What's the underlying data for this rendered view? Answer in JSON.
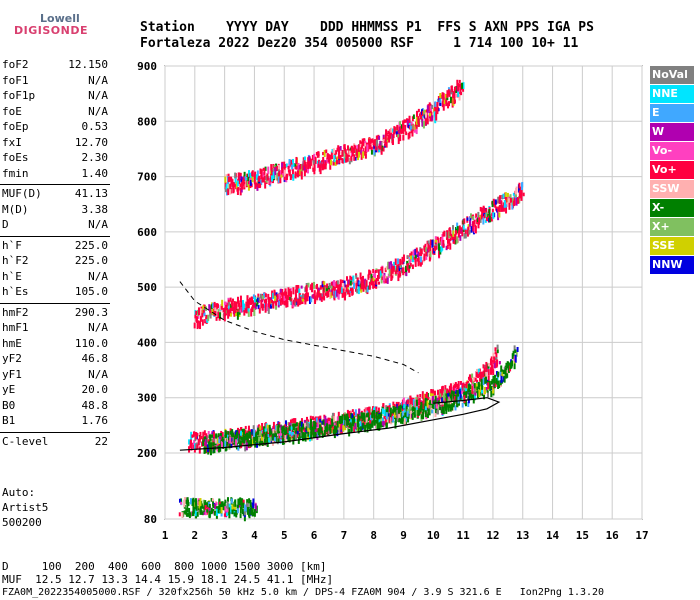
{
  "logo": {
    "top": "Lowell",
    "main": "DIGISONDE"
  },
  "header": {
    "line1": "Station    YYYY DAY    DDD HHMMSS P1  FFS S AXN PPS IGA PS",
    "line2": "Fortaleza 2022 Dez20 354 005000 RSF     1 714 100 10+ 11"
  },
  "params": [
    {
      "label": "foF2",
      "value": "12.150"
    },
    {
      "label": "foF1",
      "value": "N/A"
    },
    {
      "label": "foF1p",
      "value": "N/A"
    },
    {
      "label": "foE",
      "value": "N/A"
    },
    {
      "label": "foEp",
      "value": "0.53"
    },
    {
      "label": "fxI",
      "value": "12.70"
    },
    {
      "label": "foEs",
      "value": "2.30"
    },
    {
      "label": "fmin",
      "value": "1.40",
      "sep_after": true
    },
    {
      "label": "MUF(D)",
      "value": "41.13"
    },
    {
      "label": "M(D)",
      "value": "3.38"
    },
    {
      "label": "D",
      "value": "N/A",
      "sep_after": true
    },
    {
      "label": "h`F",
      "value": "225.0"
    },
    {
      "label": "h`F2",
      "value": "225.0"
    },
    {
      "label": "h`E",
      "value": "N/A"
    },
    {
      "label": "h`Es",
      "value": "105.0",
      "sep_after": true
    },
    {
      "label": "hmF2",
      "value": "290.3"
    },
    {
      "label": "hmF1",
      "value": "N/A"
    },
    {
      "label": "hmE",
      "value": "110.0"
    },
    {
      "label": "yF2",
      "value": "46.8"
    },
    {
      "label": "yF1",
      "value": "N/A"
    },
    {
      "label": "yE",
      "value": "20.0"
    },
    {
      "label": "B0",
      "value": "48.8"
    },
    {
      "label": "B1",
      "value": "1.76",
      "sep_after": true
    },
    {
      "label": "C-level",
      "value": "22"
    }
  ],
  "auto": {
    "line1": "Auto:",
    "line2": "Artist5",
    "line3": "500200"
  },
  "legend": [
    {
      "label": "NoVal",
      "color": "#808080"
    },
    {
      "label": "NNE",
      "color": "#00e5ff"
    },
    {
      "label": "E",
      "color": "#40a8ff"
    },
    {
      "label": "W",
      "color": "#b000b0"
    },
    {
      "label": "Vo-",
      "color": "#ff40c0"
    },
    {
      "label": "Vo+",
      "color": "#ff0040"
    },
    {
      "label": "SSW",
      "color": "#ffb0b0"
    },
    {
      "label": "X-",
      "color": "#008000"
    },
    {
      "label": "X+",
      "color": "#80c060"
    },
    {
      "label": "SSE",
      "color": "#d0d000"
    },
    {
      "label": "NNW",
      "color": "#0000e0"
    }
  ],
  "footer": {
    "line1": "D     100  200  400  600  800 1000 1500 3000 [km]",
    "line2": "MUF  12.5 12.7 13.3 14.4 15.9 18.1 24.5 41.1 [MHz]",
    "line3": "FZA0M_2022354005000.RSF / 320fx256h 50 kHz 5.0 km / DPS-4 FZA0M 904 / 3.9 S 321.6 E   Ion2Png 1.3.20"
  },
  "chart_data": {
    "type": "scatter",
    "xlim": [
      1,
      17
    ],
    "ylim": [
      80,
      900
    ],
    "x_ticks": [
      1,
      2,
      3,
      4,
      5,
      6,
      7,
      8,
      9,
      10,
      11,
      12,
      13,
      14,
      15,
      16,
      17
    ],
    "y_ticks": [
      80,
      200,
      300,
      400,
      500,
      600,
      700,
      800,
      900
    ],
    "grid": true,
    "echo_traces": [
      {
        "name": "O-trace F",
        "color": "#ff0040",
        "points": [
          [
            1.8,
            225
          ],
          [
            2.5,
            228
          ],
          [
            3.5,
            235
          ],
          [
            4.5,
            242
          ],
          [
            5.5,
            250
          ],
          [
            6.5,
            258
          ],
          [
            7.5,
            266
          ],
          [
            8.5,
            278
          ],
          [
            9.5,
            295
          ],
          [
            10.5,
            310
          ],
          [
            11.3,
            330
          ],
          [
            11.8,
            355
          ],
          [
            12.2,
            385
          ]
        ]
      },
      {
        "name": "X-trace F",
        "color": "#008000",
        "points": [
          [
            2.3,
            222
          ],
          [
            3.5,
            230
          ],
          [
            5,
            240
          ],
          [
            6.5,
            252
          ],
          [
            8,
            265
          ],
          [
            9.5,
            282
          ],
          [
            11,
            305
          ],
          [
            12,
            330
          ],
          [
            12.5,
            360
          ],
          [
            12.8,
            390
          ]
        ]
      },
      {
        "name": "Second hop",
        "color": "#ff0040",
        "points": [
          [
            2,
            450
          ],
          [
            3,
            465
          ],
          [
            4,
            475
          ],
          [
            5,
            485
          ],
          [
            6,
            495
          ],
          [
            7,
            505
          ],
          [
            8,
            520
          ],
          [
            9,
            545
          ],
          [
            10,
            575
          ],
          [
            11,
            610
          ],
          [
            12,
            645
          ],
          [
            13,
            680
          ]
        ]
      },
      {
        "name": "Third hop",
        "color": "#ff0040",
        "points": [
          [
            3,
            690
          ],
          [
            4,
            700
          ],
          [
            5,
            715
          ],
          [
            6,
            730
          ],
          [
            7,
            745
          ],
          [
            8,
            760
          ],
          [
            9,
            790
          ],
          [
            10,
            825
          ],
          [
            11,
            870
          ]
        ]
      },
      {
        "name": "Es layer",
        "color": "#008000",
        "points": [
          [
            1.5,
            105
          ],
          [
            2,
            105
          ],
          [
            2.5,
            106
          ],
          [
            3,
            105
          ],
          [
            3.5,
            105
          ],
          [
            4,
            106
          ]
        ]
      }
    ],
    "profile_curve": [
      [
        1.5,
        205
      ],
      [
        3,
        210
      ],
      [
        5,
        220
      ],
      [
        7,
        235
      ],
      [
        8.5,
        245
      ],
      [
        10,
        260
      ],
      [
        11,
        270
      ],
      [
        11.8,
        280
      ],
      [
        12.2,
        292
      ],
      [
        11.8,
        300
      ],
      [
        11,
        295
      ],
      [
        10,
        290
      ]
    ],
    "model_dashed": [
      [
        1.5,
        510
      ],
      [
        2,
        475
      ],
      [
        3,
        440
      ],
      [
        4,
        420
      ],
      [
        5,
        405
      ],
      [
        6,
        395
      ],
      [
        7,
        385
      ],
      [
        8,
        375
      ],
      [
        9,
        360
      ],
      [
        9.5,
        345
      ]
    ]
  }
}
